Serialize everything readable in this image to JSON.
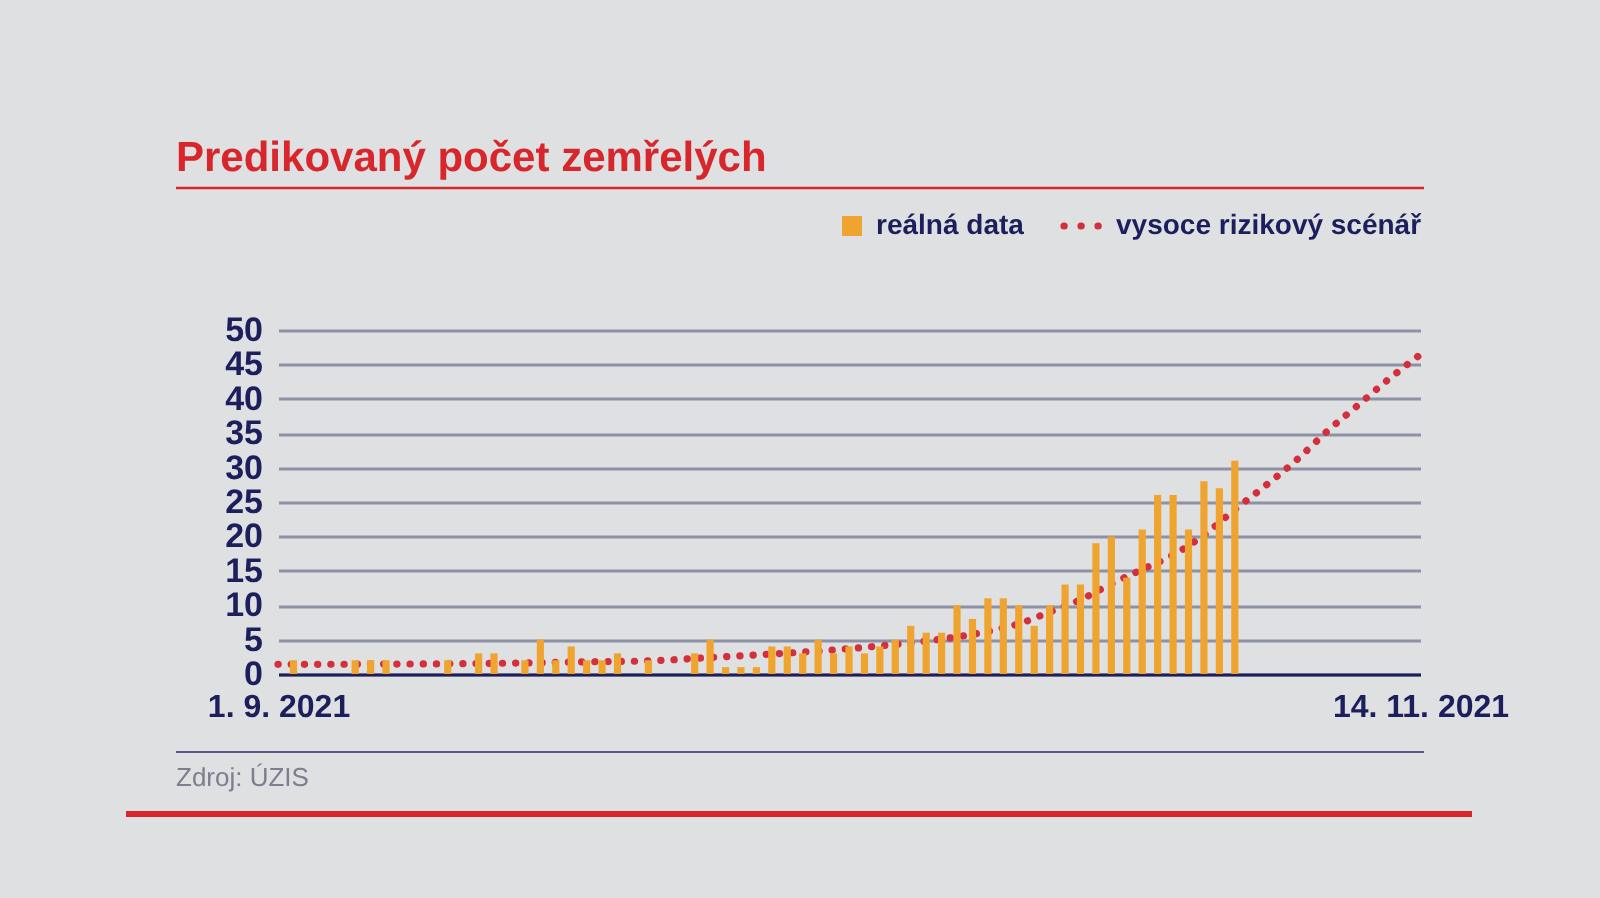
{
  "chart_data": {
    "type": "bar",
    "title": "Predikovaný počet zemřelých",
    "x": [
      "2021-09-02",
      "2021-09-03",
      "2021-09-04",
      "2021-09-05",
      "2021-09-06",
      "2021-09-07",
      "2021-09-08",
      "2021-09-09",
      "2021-09-10",
      "2021-09-11",
      "2021-09-12",
      "2021-09-13",
      "2021-09-14",
      "2021-09-15",
      "2021-09-16",
      "2021-09-17",
      "2021-09-18",
      "2021-09-19",
      "2021-09-20",
      "2021-09-21",
      "2021-09-22",
      "2021-09-23",
      "2021-09-24",
      "2021-09-25",
      "2021-09-26",
      "2021-09-27",
      "2021-09-28",
      "2021-09-29",
      "2021-09-30",
      "2021-10-01",
      "2021-10-02",
      "2021-10-03",
      "2021-10-04",
      "2021-10-05",
      "2021-10-06",
      "2021-10-07",
      "2021-10-08",
      "2021-10-09",
      "2021-10-10",
      "2021-10-11",
      "2021-10-12",
      "2021-10-13",
      "2021-10-14",
      "2021-10-15",
      "2021-10-16",
      "2021-10-17",
      "2021-10-18",
      "2021-10-19",
      "2021-10-20",
      "2021-10-21",
      "2021-10-22",
      "2021-10-23",
      "2021-10-24",
      "2021-10-25",
      "2021-10-26",
      "2021-10-27",
      "2021-10-28",
      "2021-10-29",
      "2021-10-30",
      "2021-10-31",
      "2021-11-01",
      "2021-11-02"
    ],
    "series": [
      {
        "name": "reálná data",
        "color": "#f0a430",
        "values": [
          2,
          null,
          null,
          null,
          2,
          2,
          2,
          null,
          null,
          null,
          2,
          null,
          3,
          3,
          null,
          2,
          5,
          2,
          4,
          2,
          2,
          3,
          null,
          2,
          null,
          null,
          3,
          5,
          1,
          1,
          1,
          4,
          4,
          3,
          5,
          3,
          4,
          3,
          4,
          5,
          7,
          6,
          6,
          10,
          8,
          11,
          11,
          10,
          7,
          10,
          13,
          13,
          19,
          20,
          14,
          21,
          26,
          26,
          21,
          28,
          27,
          31
        ]
      },
      {
        "name": "vysoce rizikový scénář",
        "type": "line",
        "color": "#d32f3c",
        "x": [
          "2021-09-01",
          "2021-09-13",
          "2021-09-22",
          "2021-09-25",
          "2021-09-29",
          "2021-10-03",
          "2021-10-07",
          "2021-10-11",
          "2021-10-15",
          "2021-10-17",
          "2021-10-19",
          "2021-10-21",
          "2021-10-23",
          "2021-10-25",
          "2021-10-27",
          "2021-10-29",
          "2021-10-31",
          "2021-11-02",
          "2021-11-04",
          "2021-11-06",
          "2021-11-08",
          "2021-11-10",
          "2021-11-12",
          "2021-11-14"
        ],
        "values": [
          1.4,
          1.5,
          1.8,
          1.9,
          2.4,
          2.9,
          3.5,
          4.3,
          5.4,
          6.2,
          7.3,
          9.0,
          10.8,
          13.1,
          15.2,
          17.3,
          20.2,
          23.9,
          27.4,
          31.1,
          35.3,
          39.1,
          42.9,
          46.4
        ]
      }
    ],
    "line_style": "dotted",
    "xlim": [
      "2021-09-01",
      "2021-11-14"
    ],
    "xticks": [
      {
        "value": "2021-09-01",
        "label": "1. 9. 2021"
      },
      {
        "value": "2021-11-14",
        "label": "14. 11. 2021"
      }
    ],
    "ylim": [
      0,
      50
    ],
    "yticks": [
      0,
      5,
      10,
      15,
      20,
      25,
      30,
      35,
      40,
      45,
      50
    ],
    "grid": "y",
    "legend": "top right",
    "annotations": [
      "Zdroj: ÚZIS"
    ]
  }
}
